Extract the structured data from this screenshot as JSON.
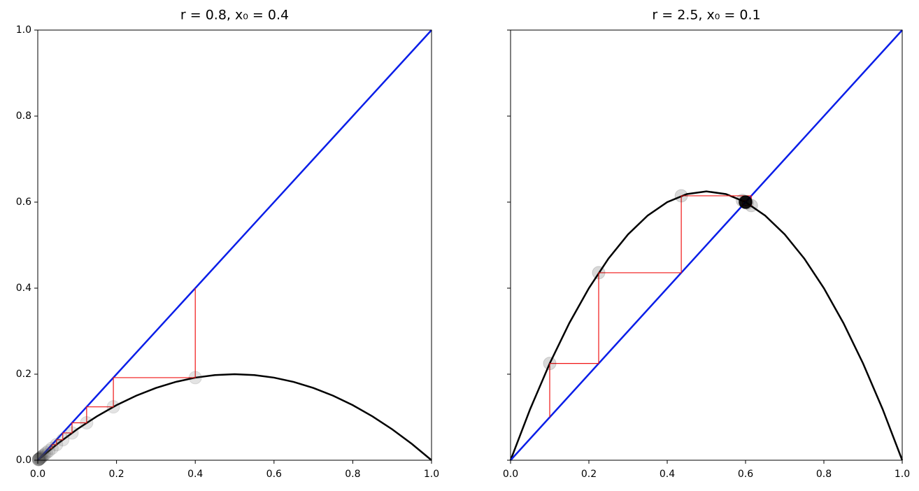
{
  "chart_data": [
    {
      "type": "line",
      "title": "r = 0.8, x₀ = 0.4",
      "xlim": [
        0,
        1
      ],
      "ylim": [
        0,
        1
      ],
      "xticks": [
        {
          "value": 0,
          "label": "0.0"
        },
        0.2,
        0.4,
        0.6,
        0.8,
        {
          "value": 1,
          "label": "1.0"
        }
      ],
      "yticks": [
        {
          "value": 0,
          "label": "0.0"
        },
        0.2,
        0.4,
        0.6,
        0.8,
        {
          "value": 1,
          "label": "1.0"
        }
      ],
      "show_ytick_labels": true,
      "series": [
        {
          "style": "line",
          "color": "#000000",
          "width": 2.5,
          "x": [
            0,
            0.05,
            0.1,
            0.15,
            0.2,
            0.25,
            0.3,
            0.35,
            0.4,
            0.45,
            0.5,
            0.55,
            0.6,
            0.65,
            0.7,
            0.75,
            0.8,
            0.85,
            0.9,
            0.95,
            1
          ],
          "values": [
            0,
            0.038,
            0.072,
            0.102,
            0.128,
            0.15,
            0.168,
            0.182,
            0.192,
            0.198,
            0.2,
            0.198,
            0.192,
            0.182,
            0.168,
            0.15,
            0.128,
            0.102,
            0.072,
            0.038,
            0
          ]
        },
        {
          "style": "line",
          "color": "#0a1ee8",
          "width": 2.5,
          "x": [
            0,
            1
          ],
          "values": [
            0,
            1
          ]
        },
        {
          "style": "line",
          "color": "#f01414",
          "width": 1.2,
          "x": [
            0.4,
            0.4,
            0.192,
            0.192,
            0.1241,
            0.1241,
            0.087,
            0.087,
            0.0635,
            0.0635,
            0.0476,
            0.0476,
            0.0362,
            0.0362,
            0.0279
          ],
          "values": [
            0.4,
            0.192,
            0.192,
            0.1241,
            0.1241,
            0.087,
            0.087,
            0.0635,
            0.0635,
            0.0476,
            0.0476,
            0.0362,
            0.0362,
            0.0279,
            0.0279
          ]
        },
        {
          "style": "scatter",
          "color": "#444444",
          "alpha": 0.15,
          "x": [
            0.4,
            0.192,
            0.1241,
            0.087,
            0.0635,
            0.0476,
            0.0362,
            0.0279,
            0.0217,
            0.017,
            0.0134,
            0.0106,
            0.0084,
            0.0066,
            0.0053,
            0.0042,
            0.0033,
            0.0026,
            0.0021,
            0.0017
          ],
          "values": [
            0.192,
            0.1241,
            0.087,
            0.0635,
            0.0476,
            0.0362,
            0.0279,
            0.0217,
            0.017,
            0.0134,
            0.0106,
            0.0084,
            0.0066,
            0.0053,
            0.0042,
            0.0033,
            0.0026,
            0.0021,
            0.0017,
            0.0013
          ]
        }
      ]
    },
    {
      "type": "line",
      "title": "r = 2.5, x₀ = 0.1",
      "xlim": [
        0,
        1
      ],
      "ylim": [
        0,
        1
      ],
      "xticks": [
        {
          "value": 0,
          "label": "0.0"
        },
        0.2,
        0.4,
        0.6,
        0.8,
        {
          "value": 1,
          "label": "1.0"
        }
      ],
      "yticks": [
        0,
        0.2,
        0.4,
        0.6,
        0.8,
        1
      ],
      "show_ytick_labels": false,
      "series": [
        {
          "style": "line",
          "color": "#000000",
          "width": 2.5,
          "x": [
            0,
            0.05,
            0.1,
            0.15,
            0.2,
            0.25,
            0.3,
            0.35,
            0.4,
            0.45,
            0.5,
            0.55,
            0.6,
            0.65,
            0.7,
            0.75,
            0.8,
            0.85,
            0.9,
            0.95,
            1
          ],
          "values": [
            0,
            0.11875,
            0.225,
            0.31875,
            0.4,
            0.46875,
            0.525,
            0.56875,
            0.6,
            0.61875,
            0.625,
            0.61875,
            0.6,
            0.56875,
            0.525,
            0.46875,
            0.4,
            0.31875,
            0.225,
            0.11875,
            0
          ]
        },
        {
          "style": "line",
          "color": "#0a1ee8",
          "width": 2.5,
          "x": [
            0,
            1
          ],
          "values": [
            0,
            1
          ]
        },
        {
          "style": "line",
          "color": "#f01414",
          "width": 1.2,
          "x": [
            0.1,
            0.1,
            0.225,
            0.225,
            0.4359,
            0.4359,
            0.6147,
            0.6147,
            0.5921,
            0.5921,
            0.6038
          ],
          "values": [
            0.1,
            0.225,
            0.225,
            0.4359,
            0.4359,
            0.6147,
            0.6147,
            0.5921,
            0.5921,
            0.6038,
            0.6038
          ]
        },
        {
          "style": "scatter",
          "color": "#000000",
          "alpha": 0.15,
          "x": [
            0.1,
            0.225,
            0.4359,
            0.6147,
            0.5921,
            0.6038,
            0.5981,
            0.6009,
            0.5995,
            0.6002,
            0.5999,
            0.6001,
            0.6,
            0.6,
            0.6,
            0.6,
            0.6,
            0.6,
            0.6,
            0.6
          ],
          "values": [
            0.225,
            0.4359,
            0.6147,
            0.5921,
            0.6038,
            0.5981,
            0.6009,
            0.5995,
            0.6002,
            0.5999,
            0.6001,
            0.6,
            0.6,
            0.6,
            0.6,
            0.6,
            0.6,
            0.6,
            0.6,
            0.6
          ]
        }
      ]
    }
  ]
}
